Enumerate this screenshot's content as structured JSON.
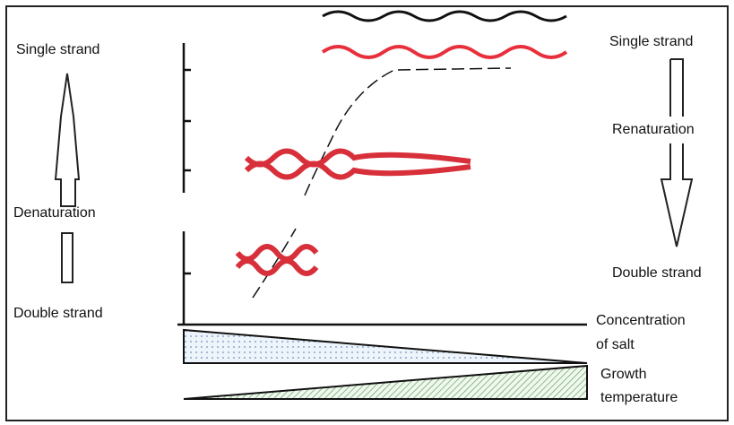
{
  "left": {
    "top": "Single strand",
    "middle": "Denaturation",
    "bottom": "Double strand"
  },
  "right": {
    "top": "Single strand",
    "middle": "Renaturation",
    "bottom": "Double strand"
  },
  "axis_labels": {
    "salt": [
      "Concentration",
      "of salt"
    ],
    "temperature": [
      "Growth",
      "temperature"
    ]
  }
}
